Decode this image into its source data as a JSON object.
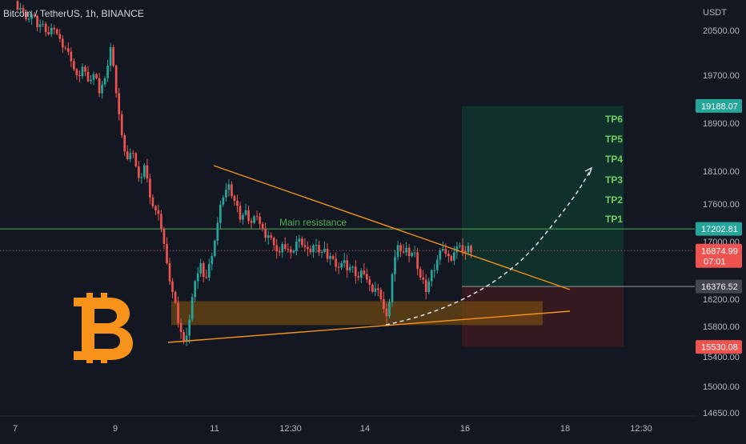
{
  "header": {
    "title": "Bitcoin / TetherUS, 1h, BINANCE"
  },
  "chart_data": {
    "type": "candlestick",
    "title": "Bitcoin / TetherUS, 1h, BINANCE",
    "y_axis": {
      "unit": "USDT",
      "ticks": [
        "20500.00",
        "19700.00",
        "18900.00",
        "18100.00",
        "17600.00",
        "17000.00",
        "16200.00",
        "15800.00",
        "15400.00",
        "15000.00",
        "14650.00"
      ]
    },
    "x_axis": {
      "ticks": [
        "7",
        "9",
        "11",
        "12:30",
        "14",
        "16",
        "18",
        "12:30"
      ]
    },
    "price_tags": [
      {
        "label": "19188.07",
        "value": 19188.07,
        "color": "#26a69a"
      },
      {
        "label": "17202.81",
        "value": 17202.81,
        "color": "#26a69a"
      },
      {
        "label": "16874.99",
        "sub": "07:01",
        "value": 16874.99,
        "color": "#ef5350"
      },
      {
        "label": "16376.52",
        "value": 16376.52,
        "color": "#434651"
      },
      {
        "label": "15530.08",
        "value": 15530.08,
        "color": "#ef5350"
      }
    ],
    "levels": {
      "resistance": 17202.81,
      "current": 16874.99,
      "target": 19188.07,
      "entry": 16376.52,
      "stop": 15530.08
    },
    "annotations": {
      "resistance_label": "Main resistance",
      "take_profits": [
        "TP6",
        "TP5",
        "TP4",
        "TP3",
        "TP2",
        "TP1"
      ]
    },
    "colors": {
      "up": "#26a69a",
      "down": "#ef5350",
      "trendline": "#f7931a",
      "resistance": "#4caf50",
      "logo": "#f7931a"
    },
    "ohlc_path": [
      20900,
      20700,
      20780,
      20560,
      20620,
      20430,
      20520,
      20350,
      20180,
      19950,
      19700,
      19850,
      19600,
      19720,
      19400,
      19650,
      20200,
      19400,
      18700,
      18300,
      18400,
      18000,
      18200,
      17700,
      17500,
      17200,
      16700,
      16300,
      15850,
      15600,
      15900,
      16450,
      16700,
      16500,
      16800,
      17300,
      17700,
      17900,
      17650,
      17350,
      17500,
      17300,
      17400,
      17200,
      17100,
      16950,
      16850,
      16900,
      16850,
      17000,
      16950,
      16900,
      16950,
      16850,
      16900,
      16800,
      16650,
      16700,
      16600,
      16650,
      16500,
      16550,
      16400,
      16350,
      16200,
      15950,
      16550,
      16950,
      16850,
      16800,
      16850,
      16500,
      16300,
      16600,
      16750,
      16900,
      16800,
      16850,
      16950,
      16850,
      16850
    ]
  }
}
